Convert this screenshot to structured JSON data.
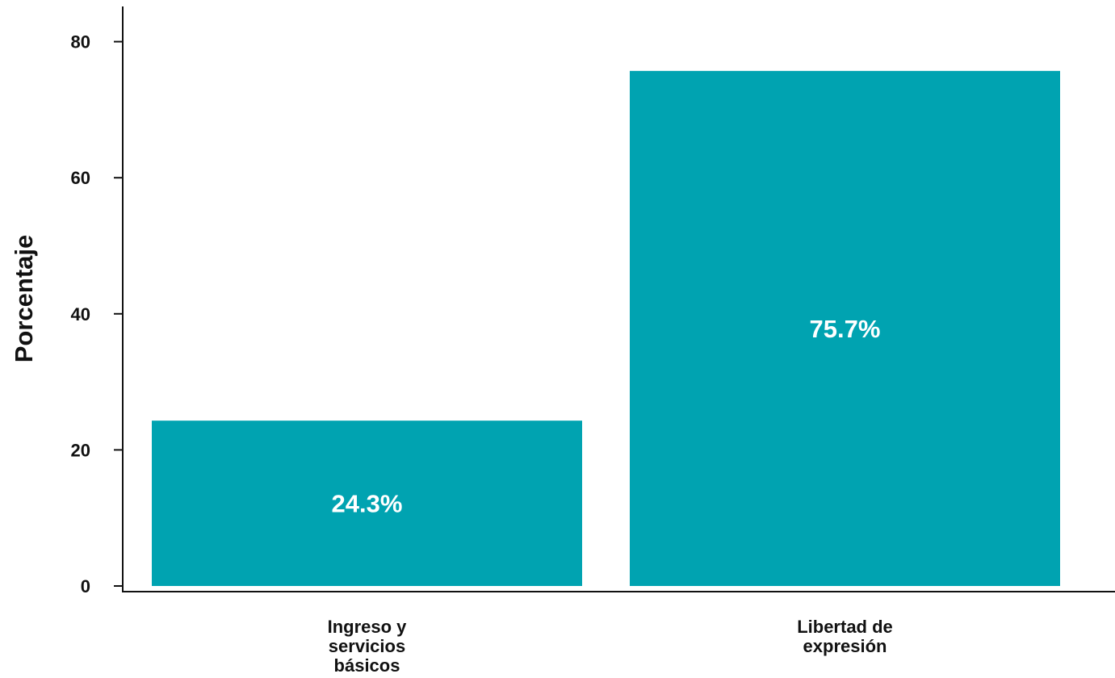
{
  "chart_data": {
    "type": "bar",
    "title": "",
    "xlabel": "",
    "ylabel": "Porcentaje",
    "categories": [
      [
        "Ingreso y",
        "servicios",
        "básicos"
      ],
      [
        "Libertad de",
        "expresión"
      ]
    ],
    "values": [
      24.3,
      75.7
    ],
    "data_labels": [
      "24.3%",
      "75.7%"
    ],
    "ylim": [
      0,
      85
    ],
    "yticks": [
      0,
      20,
      40,
      60,
      80
    ],
    "ytick_labels": [
      "0",
      "20",
      "40",
      "60",
      "80"
    ],
    "grid": false,
    "legend": "none",
    "colors": {
      "bar": "#00A3B1",
      "bar_label": "#FFFFFF",
      "axis": "#111111"
    }
  }
}
